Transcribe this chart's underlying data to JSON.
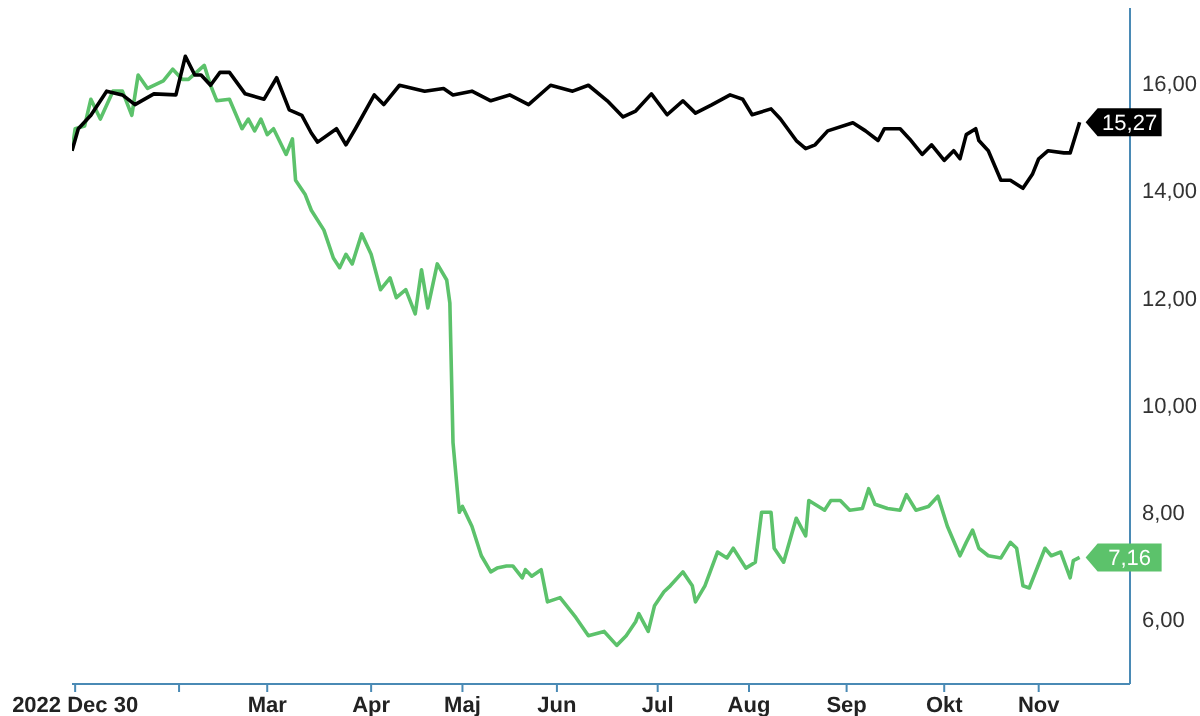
{
  "chart_data": {
    "type": "line",
    "xlim": [
      "2022-12-29",
      "2023-11-30"
    ],
    "ylim": [
      4.8,
      17.4
    ],
    "xticks": [
      {
        "value": "2022-12-30",
        "label": "2022 Dec 30"
      },
      {
        "value": "2023-02-01",
        "label": null
      },
      {
        "value": "2023-03-01",
        "label": "Mar"
      },
      {
        "value": "2023-04-03",
        "label": "Apr"
      },
      {
        "value": "2023-05-02",
        "label": "Maj"
      },
      {
        "value": "2023-06-01",
        "label": "Jun"
      },
      {
        "value": "2023-07-03",
        "label": "Jul"
      },
      {
        "value": "2023-08-01",
        "label": "Aug"
      },
      {
        "value": "2023-09-01",
        "label": "Sep"
      },
      {
        "value": "2023-10-02",
        "label": "Okt"
      },
      {
        "value": "2023-11-01",
        "label": "Nov"
      }
    ],
    "yticks": [
      {
        "value": 6,
        "label": "6,00"
      },
      {
        "value": 8,
        "label": "8,00"
      },
      {
        "value": 10,
        "label": "10,00"
      },
      {
        "value": 12,
        "label": "12,00"
      },
      {
        "value": 14,
        "label": "14,00"
      },
      {
        "value": 16,
        "label": "16,00"
      }
    ],
    "grid": false,
    "legend": false,
    "marker": "none",
    "line_style": "solid",
    "series": [
      {
        "color": "#5cc26b",
        "x": [
          "2022-12-29",
          "2022-12-30",
          "2023-01-02",
          "2023-01-04",
          "2023-01-07",
          "2023-01-11",
          "2023-01-14",
          "2023-01-17",
          "2023-01-19",
          "2023-01-22",
          "2023-01-27",
          "2023-01-30",
          "2023-02-02",
          "2023-02-04",
          "2023-02-09",
          "2023-02-11",
          "2023-02-13",
          "2023-02-17",
          "2023-02-21",
          "2023-02-23",
          "2023-02-25",
          "2023-02-27",
          "2023-03-01",
          "2023-03-03",
          "2023-03-07",
          "2023-03-09",
          "2023-03-10",
          "2023-03-13",
          "2023-03-15",
          "2023-03-19",
          "2023-03-22",
          "2023-03-24",
          "2023-03-26",
          "2023-03-28",
          "2023-03-31",
          "2023-04-03",
          "2023-04-06",
          "2023-04-09",
          "2023-04-11",
          "2023-04-14",
          "2023-04-17",
          "2023-04-19",
          "2023-04-21",
          "2023-04-24",
          "2023-04-27",
          "2023-04-28",
          "2023-04-29",
          "2023-05-01",
          "2023-05-02",
          "2023-05-05",
          "2023-05-08",
          "2023-05-11",
          "2023-05-13",
          "2023-05-16",
          "2023-05-18",
          "2023-05-21",
          "2023-05-22",
          "2023-05-24",
          "2023-05-27",
          "2023-05-29",
          "2023-06-02",
          "2023-06-07",
          "2023-06-11",
          "2023-06-16",
          "2023-06-20",
          "2023-06-23",
          "2023-06-26",
          "2023-06-27",
          "2023-06-30",
          "2023-07-02",
          "2023-07-05",
          "2023-07-07",
          "2023-07-11",
          "2023-07-14",
          "2023-07-15",
          "2023-07-18",
          "2023-07-22",
          "2023-07-25",
          "2023-07-27",
          "2023-07-31",
          "2023-08-03",
          "2023-08-05",
          "2023-08-08",
          "2023-08-09",
          "2023-08-12",
          "2023-08-16",
          "2023-08-19",
          "2023-08-20",
          "2023-08-25",
          "2023-08-27",
          "2023-08-30",
          "2023-09-02",
          "2023-09-06",
          "2023-09-08",
          "2023-09-10",
          "2023-09-14",
          "2023-09-18",
          "2023-09-20",
          "2023-09-23",
          "2023-09-27",
          "2023-09-30",
          "2023-10-03",
          "2023-10-07",
          "2023-10-09",
          "2023-10-11",
          "2023-10-13",
          "2023-10-16",
          "2023-10-20",
          "2023-10-23",
          "2023-10-25",
          "2023-10-27",
          "2023-10-29",
          "2023-11-03",
          "2023-11-05",
          "2023-11-08",
          "2023-11-11",
          "2023-11-12",
          "2023-11-14"
        ],
        "values": [
          14.74,
          15.15,
          15.2,
          15.7,
          15.33,
          15.85,
          15.85,
          15.4,
          16.15,
          15.9,
          16.04,
          16.26,
          16.07,
          16.07,
          16.33,
          15.96,
          15.67,
          15.7,
          15.15,
          15.33,
          15.11,
          15.33,
          15.04,
          15.15,
          14.67,
          14.96,
          14.19,
          13.93,
          13.63,
          13.26,
          12.74,
          12.56,
          12.81,
          12.63,
          13.19,
          12.81,
          12.15,
          12.37,
          12.0,
          12.15,
          11.7,
          12.52,
          11.81,
          12.63,
          12.33,
          11.9,
          9.3,
          8.0,
          8.11,
          7.74,
          7.19,
          6.89,
          6.96,
          7.0,
          7.0,
          6.78,
          6.93,
          6.81,
          6.93,
          6.33,
          6.41,
          6.04,
          5.7,
          5.78,
          5.52,
          5.7,
          5.96,
          6.11,
          5.78,
          6.26,
          6.52,
          6.63,
          6.89,
          6.63,
          6.33,
          6.63,
          7.26,
          7.15,
          7.33,
          6.96,
          7.07,
          8.0,
          8.0,
          7.33,
          7.07,
          7.89,
          7.56,
          8.22,
          8.04,
          8.22,
          8.22,
          8.04,
          8.07,
          8.44,
          8.15,
          8.07,
          8.04,
          8.33,
          8.04,
          8.11,
          8.3,
          7.74,
          7.19,
          7.44,
          7.67,
          7.33,
          7.19,
          7.15,
          7.44,
          7.33,
          6.63,
          6.59,
          7.33,
          7.19,
          7.26,
          6.78,
          7.1,
          7.16
        ],
        "value_labels": [
          null,
          null,
          null,
          null,
          null,
          null,
          null,
          null,
          null,
          null,
          null,
          null,
          null,
          null,
          null,
          null,
          null,
          null,
          null,
          null,
          null,
          null,
          null,
          null,
          null,
          null,
          null,
          null,
          null,
          null,
          null,
          null,
          null,
          null,
          null,
          null,
          null,
          null,
          null,
          null,
          null,
          null,
          null,
          null,
          null,
          null,
          null,
          null,
          null,
          null,
          null,
          null,
          null,
          null,
          null,
          null,
          null,
          null,
          null,
          null,
          null,
          null,
          null,
          null,
          null,
          null,
          null,
          null,
          null,
          null,
          null,
          null,
          null,
          null,
          null,
          null,
          null,
          null,
          null,
          null,
          null,
          null,
          null,
          null,
          null,
          null,
          null,
          null,
          null,
          null,
          null,
          null,
          null,
          null,
          null,
          null,
          null,
          null,
          null,
          null,
          null,
          null,
          null,
          null,
          null,
          null,
          null,
          null,
          null,
          null,
          null,
          null,
          null,
          null,
          null,
          null,
          null,
          "7,16"
        ]
      },
      {
        "color": "#000000",
        "x": [
          "2022-12-29",
          "2022-12-31",
          "2023-01-04",
          "2023-01-09",
          "2023-01-14",
          "2023-01-18",
          "2023-01-24",
          "2023-01-31",
          "2023-02-03",
          "2023-02-06",
          "2023-02-08",
          "2023-02-11",
          "2023-02-14",
          "2023-02-17",
          "2023-02-22",
          "2023-02-28",
          "2023-03-04",
          "2023-03-08",
          "2023-03-12",
          "2023-03-15",
          "2023-03-17",
          "2023-03-23",
          "2023-03-26",
          "2023-03-29",
          "2023-04-04",
          "2023-04-07",
          "2023-04-12",
          "2023-04-20",
          "2023-04-26",
          "2023-04-29",
          "2023-05-05",
          "2023-05-11",
          "2023-05-17",
          "2023-05-23",
          "2023-05-30",
          "2023-06-06",
          "2023-06-11",
          "2023-06-17",
          "2023-06-22",
          "2023-06-26",
          "2023-07-01",
          "2023-07-06",
          "2023-07-11",
          "2023-07-15",
          "2023-07-20",
          "2023-07-26",
          "2023-07-30",
          "2023-08-02",
          "2023-08-08",
          "2023-08-11",
          "2023-08-16",
          "2023-08-19",
          "2023-08-22",
          "2023-08-26",
          "2023-09-03",
          "2023-09-07",
          "2023-09-11",
          "2023-09-13",
          "2023-09-18",
          "2023-09-21",
          "2023-09-25",
          "2023-09-28",
          "2023-10-02",
          "2023-10-05",
          "2023-10-07",
          "2023-10-09",
          "2023-10-12",
          "2023-10-13",
          "2023-10-16",
          "2023-10-20",
          "2023-10-23",
          "2023-10-27",
          "2023-10-30",
          "2023-11-01",
          "2023-11-04",
          "2023-11-09",
          "2023-11-11",
          "2023-11-14"
        ],
        "values": [
          14.74,
          15.15,
          15.4,
          15.85,
          15.78,
          15.6,
          15.8,
          15.78,
          16.5,
          16.15,
          16.15,
          15.96,
          16.2,
          16.2,
          15.8,
          15.7,
          16.1,
          15.5,
          15.4,
          15.07,
          14.9,
          15.15,
          14.85,
          15.15,
          15.78,
          15.6,
          15.96,
          15.85,
          15.9,
          15.78,
          15.85,
          15.67,
          15.78,
          15.6,
          15.96,
          15.85,
          15.96,
          15.67,
          15.37,
          15.48,
          15.8,
          15.41,
          15.67,
          15.44,
          15.59,
          15.78,
          15.7,
          15.41,
          15.52,
          15.33,
          14.93,
          14.78,
          14.85,
          15.11,
          15.26,
          15.11,
          14.93,
          15.15,
          15.15,
          14.96,
          14.67,
          14.85,
          14.56,
          14.74,
          14.59,
          15.04,
          15.15,
          14.93,
          14.74,
          14.19,
          14.19,
          14.04,
          14.3,
          14.59,
          14.74,
          14.7,
          14.7,
          15.27
        ],
        "value_labels": [
          null,
          null,
          null,
          null,
          null,
          null,
          null,
          null,
          null,
          null,
          null,
          null,
          null,
          null,
          null,
          null,
          null,
          null,
          null,
          null,
          null,
          null,
          null,
          null,
          null,
          null,
          null,
          null,
          null,
          null,
          null,
          null,
          null,
          null,
          null,
          null,
          null,
          null,
          null,
          null,
          null,
          null,
          null,
          null,
          null,
          null,
          null,
          null,
          null,
          null,
          null,
          null,
          null,
          null,
          null,
          null,
          null,
          null,
          null,
          null,
          null,
          null,
          null,
          null,
          null,
          null,
          null,
          null,
          null,
          null,
          null,
          null,
          null,
          null,
          null,
          null,
          null,
          "15,27"
        ]
      }
    ]
  }
}
